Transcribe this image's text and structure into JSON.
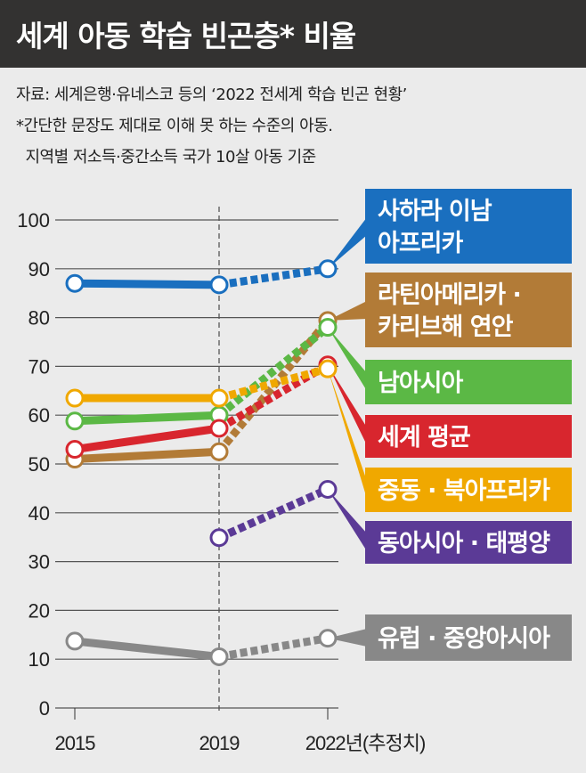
{
  "title": "세계 아동 학습 빈곤층* 비율",
  "notes": [
    "자료: 세계은행·유네스코 등의 ‘2022 전세계 학습 빈곤 현황’",
    "*간단한 문장도 제대로 이해 못 하는 수준의 아동.",
    "  지역별 저소득·중간소득 국가 10살 아동 기준"
  ],
  "chart_data": {
    "type": "line",
    "title": "세계 아동 학습 빈곤층* 비율",
    "x": [
      "2015",
      "2019",
      "2022년(추정치)"
    ],
    "ylim": [
      0,
      100
    ],
    "yticks": [
      0,
      10,
      20,
      30,
      40,
      50,
      60,
      70,
      80,
      90,
      100
    ],
    "grid": true,
    "note": "2019→2022 segments dashed (estimate)",
    "series": [
      {
        "name": "사하라 이남 아프리카",
        "label_lines": [
          "사하라 이남",
          "아프리카"
        ],
        "color": "#1a6fbf",
        "values": [
          87,
          86.7,
          90
        ]
      },
      {
        "name": "라틴아메리카·카리브해 연안",
        "label_lines": [
          "라틴아메리카 ·",
          "카리브해 연안"
        ],
        "color": "#b27b37",
        "values": [
          51,
          52.5,
          79.4
        ]
      },
      {
        "name": "남아시아",
        "label_lines": [
          "남아시아"
        ],
        "color": "#5bb845",
        "values": [
          58.8,
          60,
          78
        ]
      },
      {
        "name": "세계 평균",
        "label_lines": [
          "세계 평균"
        ],
        "color": "#d8262e",
        "values": [
          53,
          57.3,
          70.3
        ]
      },
      {
        "name": "중동·북아프리카",
        "label_lines": [
          "중동 · 북아프리카"
        ],
        "color": "#f0a800",
        "values": [
          63.5,
          63.5,
          69.5
        ]
      },
      {
        "name": "동아시아·태평양",
        "label_lines": [
          "동아시아 · 태평양"
        ],
        "color": "#5b3a96",
        "values": [
          null,
          34.9,
          44.8
        ]
      },
      {
        "name": "유럽·중앙아시아",
        "label_lines": [
          "유럽 · 중앙아시아"
        ],
        "color": "#888888",
        "values": [
          13.7,
          10.5,
          14.3
        ]
      }
    ]
  }
}
